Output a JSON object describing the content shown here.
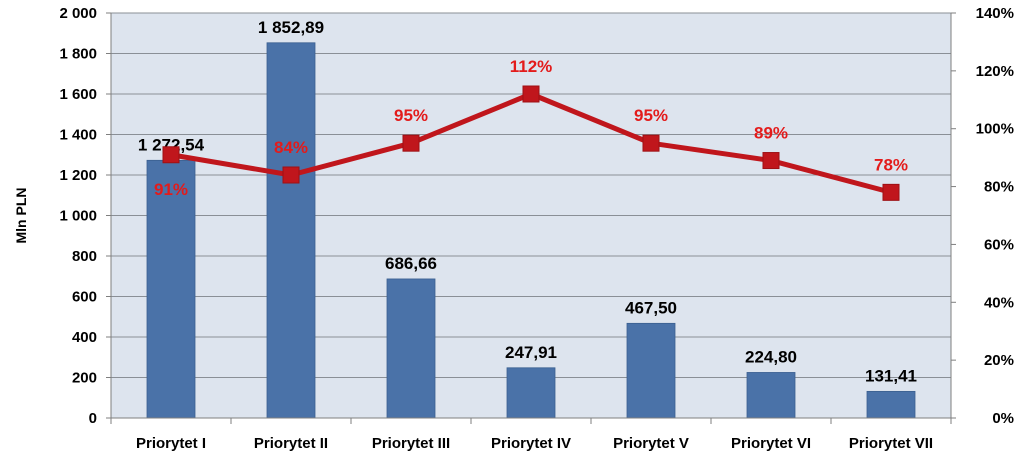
{
  "chart_data": {
    "type": "bar",
    "title": "",
    "xlabel": "",
    "ylabel": "Mln PLN",
    "categories": [
      "Priorytet I",
      "Priorytet II",
      "Priorytet III",
      "Priorytet IV",
      "Priorytet V",
      "Priorytet VI",
      "Priorytet VII"
    ],
    "ylim": [
      0,
      2000
    ],
    "y_ticks": [
      0,
      200,
      400,
      600,
      800,
      1000,
      1200,
      1400,
      1600,
      1800,
      2000
    ],
    "y_tick_labels": [
      "0",
      "200",
      "400",
      "600",
      "800",
      "1 000",
      "1 200",
      "1 400",
      "1 600",
      "1 800",
      "2 000"
    ],
    "y2lim": [
      0,
      140
    ],
    "y2_ticks": [
      0,
      20,
      40,
      60,
      80,
      100,
      120,
      140
    ],
    "y2_tick_labels": [
      "0%",
      "20%",
      "40%",
      "60%",
      "80%",
      "100%",
      "120%",
      "140%"
    ],
    "grid": true,
    "legend": "none",
    "series": [
      {
        "type": "bar",
        "axis": "left",
        "color": "#4a72a8",
        "values": [
          1272.54,
          1852.89,
          686.66,
          247.91,
          467.5,
          224.8,
          131.41
        ],
        "labels": [
          "1 272,54",
          "1 852,89",
          "686,66",
          "247,91",
          "467,50",
          "224,80",
          "131,41"
        ]
      },
      {
        "type": "line",
        "axis": "right",
        "color": "#c0161c",
        "label_color": "#e31b1b",
        "values": [
          91,
          84,
          95,
          112,
          95,
          89,
          78
        ],
        "labels": [
          "91%",
          "84%",
          "95%",
          "112%",
          "95%",
          "89%",
          "78%"
        ]
      }
    ]
  }
}
